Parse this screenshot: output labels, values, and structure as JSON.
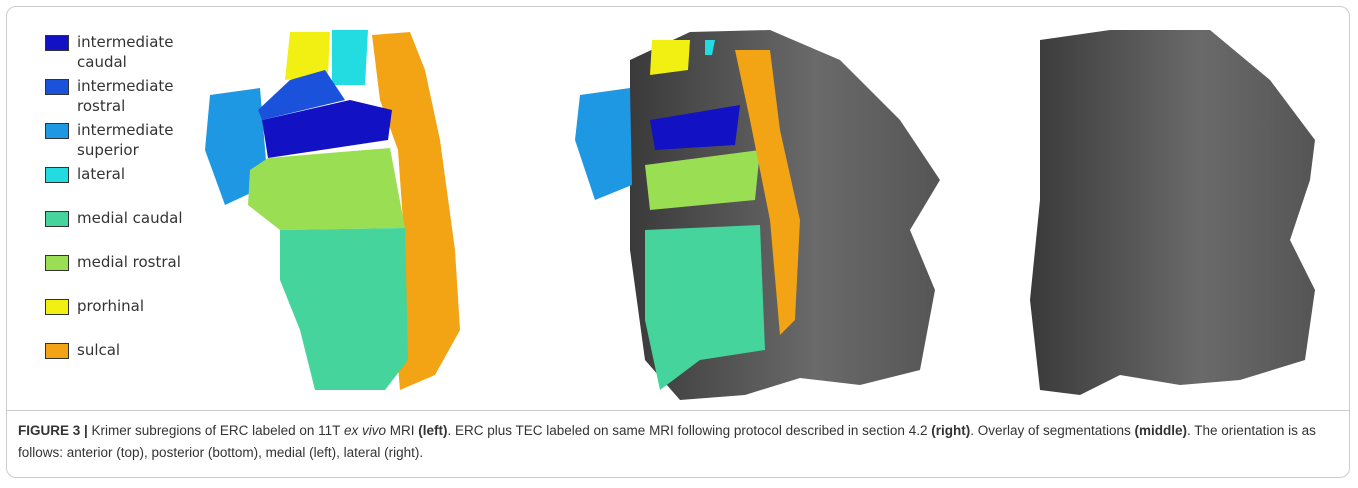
{
  "legend": [
    {
      "label": "intermediate caudal",
      "color": "#1212c4"
    },
    {
      "label": "intermediate rostral",
      "color": "#1a52dc"
    },
    {
      "label": "intermediate superior",
      "color": "#1e98e2"
    },
    {
      "label": "lateral",
      "color": "#22dce2"
    },
    {
      "label": "medial caudal",
      "color": "#44d49c"
    },
    {
      "label": "medial rostral",
      "color": "#9ade54"
    },
    {
      "label": "prorhinal",
      "color": "#f2f012"
    },
    {
      "label": "sulcal",
      "color": "#f2a414"
    }
  ],
  "caption": {
    "parts": [
      {
        "text": "FIGURE 3 |",
        "style": "bold"
      },
      {
        "text": " Krimer subregions of ERC labeled on 11T ",
        "style": "normal"
      },
      {
        "text": "ex vivo",
        "style": "italic"
      },
      {
        "text": " MRI ",
        "style": "normal"
      },
      {
        "text": "(left)",
        "style": "bold"
      },
      {
        "text": ". ERC plus TEC labeled on same MRI following protocol described in section 4.2 ",
        "style": "normal"
      },
      {
        "text": "(right)",
        "style": "bold"
      },
      {
        "text": ". Overlay of segmentations ",
        "style": "normal"
      },
      {
        "text": "(middle)",
        "style": "bold"
      },
      {
        "text": ". The orientation is as follows: anterior (top), posterior (bottom), medial (left), lateral (right).",
        "style": "normal"
      }
    ]
  }
}
